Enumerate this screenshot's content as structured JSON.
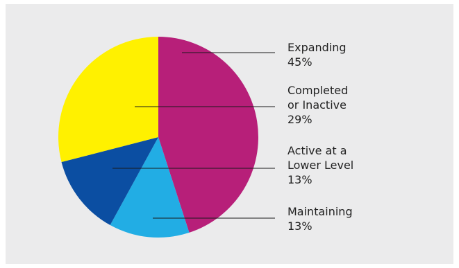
{
  "chart_data": {
    "type": "pie",
    "title": "",
    "slices": [
      {
        "label_lines": [
          "Expanding"
        ],
        "value_text": "45%",
        "value": 45,
        "color": "#b71f79"
      },
      {
        "label_lines": [
          "Maintaining"
        ],
        "value_text": "13%",
        "value": 13,
        "color": "#22ade4"
      },
      {
        "label_lines": [
          "Active at a",
          "Lower Level"
        ],
        "value_text": "13%",
        "value": 13,
        "color": "#0b4ea2"
      },
      {
        "label_lines": [
          "Completed",
          "or Inactive"
        ],
        "value_text": "29%",
        "value": 29,
        "color": "#fff100"
      }
    ],
    "start": "12 o'clock",
    "direction": "clockwise",
    "legend": "none",
    "labels": "right-side callouts with leader lines"
  }
}
